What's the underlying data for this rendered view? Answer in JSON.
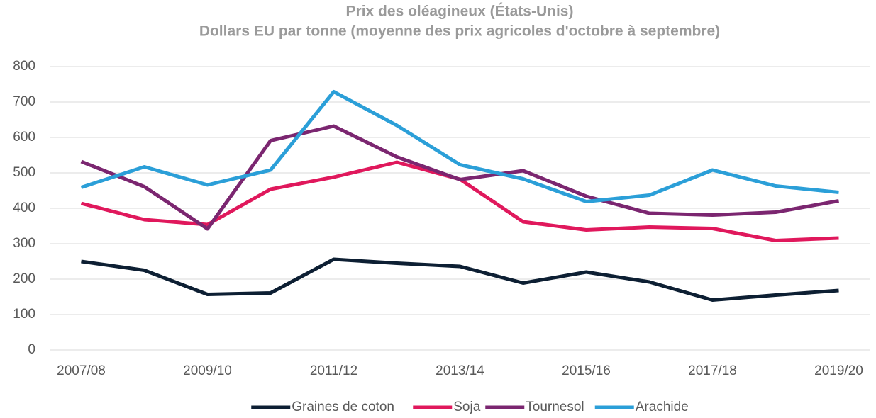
{
  "chart_data": {
    "type": "line",
    "title": "Prix des oléagineux (États-Unis)",
    "subtitle": "Dollars EU par tonne (moyenne des prix agricoles d'octobre à septembre)",
    "categories": [
      "2007/08",
      null,
      "2009/10",
      null,
      "2011/12",
      null,
      "2013/14",
      null,
      "2015/16",
      null,
      "2017/18",
      null,
      "2019/20"
    ],
    "series": [
      {
        "name": "Graines de coton",
        "color": "#0d1f33",
        "values": [
          250,
          225,
          157,
          161,
          256,
          245,
          236,
          189,
          220,
          192,
          141,
          155,
          168
        ]
      },
      {
        "name": "Soja",
        "color": "#e0185c",
        "values": [
          414,
          368,
          354,
          454,
          488,
          530,
          482,
          362,
          339,
          347,
          343,
          309,
          316
        ]
      },
      {
        "name": "Tournesol",
        "color": "#7b2670",
        "values": [
          532,
          461,
          342,
          591,
          632,
          545,
          481,
          506,
          434,
          386,
          381,
          389,
          421
        ]
      },
      {
        "name": "Arachide",
        "color": "#2b9fd8",
        "values": [
          459,
          517,
          466,
          508,
          729,
          634,
          523,
          483,
          419,
          437,
          508,
          463,
          445
        ]
      }
    ],
    "ylim": [
      0,
      800
    ],
    "yticks": [
      0,
      100,
      200,
      300,
      400,
      500,
      600,
      700,
      800
    ],
    "grid": true,
    "legend": "bottom"
  }
}
